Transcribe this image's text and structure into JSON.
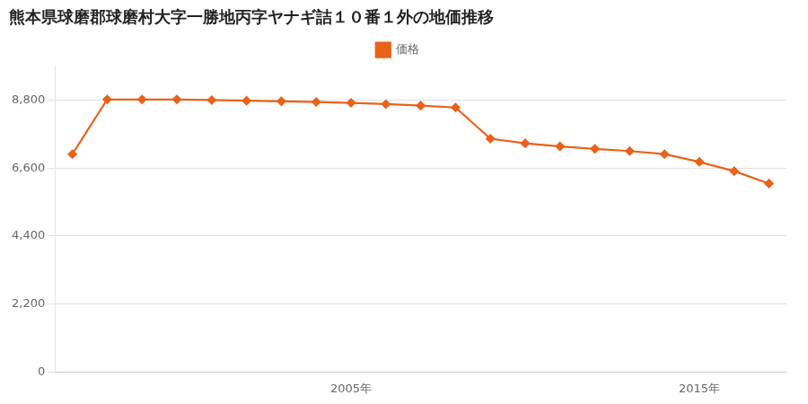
{
  "chart_data": {
    "type": "line",
    "title": "熊本県球磨郡球磨村大字一勝地丙字ヤナギ詰１０番１外の地価推移",
    "x": [
      1997,
      1998,
      1999,
      2000,
      2001,
      2002,
      2003,
      2004,
      2005,
      2006,
      2007,
      2008,
      2009,
      2010,
      2011,
      2012,
      2013,
      2014,
      2015,
      2016,
      2017
    ],
    "series": [
      {
        "name": "価格",
        "color": "#E8621A",
        "marker": "diamond",
        "line_style": "solid",
        "values": [
          7050,
          8820,
          8820,
          8820,
          8800,
          8780,
          8760,
          8740,
          8710,
          8670,
          8620,
          8560,
          7550,
          7400,
          7300,
          7220,
          7150,
          7050,
          6800,
          6500,
          6100
        ]
      }
    ],
    "xlim": [
      1996.5,
      2017.5
    ],
    "xticks": [
      {
        "value": 2005,
        "label": "2005年"
      },
      {
        "value": 2015,
        "label": "2015年"
      }
    ],
    "ylim": [
      0,
      9900
    ],
    "yticks": [
      0,
      {
        "value": 2200,
        "label": "2,200"
      },
      {
        "value": 4400,
        "label": "4,400"
      },
      {
        "value": 6600,
        "label": "6,600"
      },
      {
        "value": 8800,
        "label": "8,800"
      }
    ],
    "grid": "y",
    "legend": "top"
  }
}
